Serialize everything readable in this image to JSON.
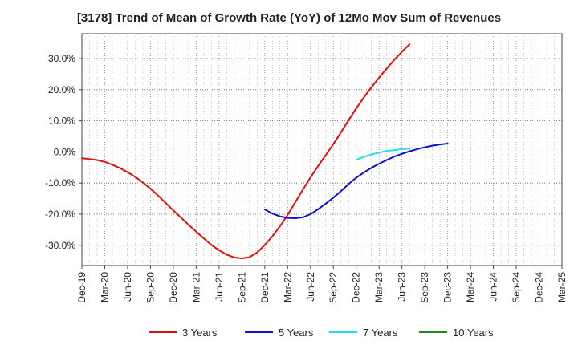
{
  "chart_data": {
    "type": "line",
    "title": "[3178]  Trend of Mean of Growth Rate (YoY) of 12Mo Mov Sum of Revenues",
    "xlabel": "",
    "ylabel": "",
    "x_ticks": [
      "Dec-19",
      "Mar-20",
      "Jun-20",
      "Sep-20",
      "Dec-20",
      "Mar-21",
      "Jun-21",
      "Sep-21",
      "Dec-21",
      "Mar-22",
      "Jun-22",
      "Sep-22",
      "Dec-22",
      "Mar-23",
      "Jun-23",
      "Sep-23",
      "Dec-23",
      "Mar-24",
      "Jun-24",
      "Sep-24",
      "Dec-24",
      "Mar-25"
    ],
    "y_ticks": [
      30,
      20,
      10,
      0,
      -10,
      -20,
      -30
    ],
    "y_tick_labels": [
      "30.0%",
      "20.0%",
      "10.0%",
      "0.0%",
      "-10.0%",
      "-20.0%",
      "-30.0%"
    ],
    "ylim": [
      -36.5,
      38
    ],
    "grid": true,
    "legend_position": "bottom",
    "series": [
      {
        "name": "3 Years",
        "color": "#dd1111",
        "start_index": 0,
        "values": [
          -2.0,
          -2.3,
          -2.6,
          -3.2,
          -4.1,
          -5.2,
          -6.5,
          -8.0,
          -9.8,
          -11.8,
          -14.0,
          -16.4,
          -18.8,
          -21.1,
          -23.4,
          -25.6,
          -27.8,
          -29.9,
          -31.6,
          -33.0,
          -33.9,
          -34.2,
          -33.8,
          -32.3,
          -29.9,
          -27.1,
          -23.9,
          -20.2,
          -16.2,
          -12.1,
          -8.2,
          -4.5,
          -1.0,
          2.5,
          6.3,
          10.2,
          14.0,
          17.5,
          20.8,
          23.9,
          26.8,
          29.6,
          32.2,
          34.6
        ]
      },
      {
        "name": "5 Years",
        "color": "#1111cc",
        "start_index": 24,
        "values": [
          -18.5,
          -19.8,
          -20.7,
          -21.2,
          -21.3,
          -21.0,
          -20.0,
          -18.4,
          -16.6,
          -14.7,
          -12.6,
          -10.3,
          -8.3,
          -6.6,
          -5.1,
          -3.8,
          -2.6,
          -1.5,
          -0.6,
          0.2,
          0.9,
          1.5,
          2.0,
          2.4,
          2.7
        ]
      },
      {
        "name": "7 Years",
        "color": "#22ddee",
        "start_index": 36,
        "values": [
          -2.5,
          -1.6,
          -0.8,
          -0.2,
          0.3,
          0.6,
          0.9,
          1.1
        ]
      },
      {
        "name": "10 Years",
        "color": "#228822",
        "start_index": 0,
        "values": []
      }
    ]
  }
}
